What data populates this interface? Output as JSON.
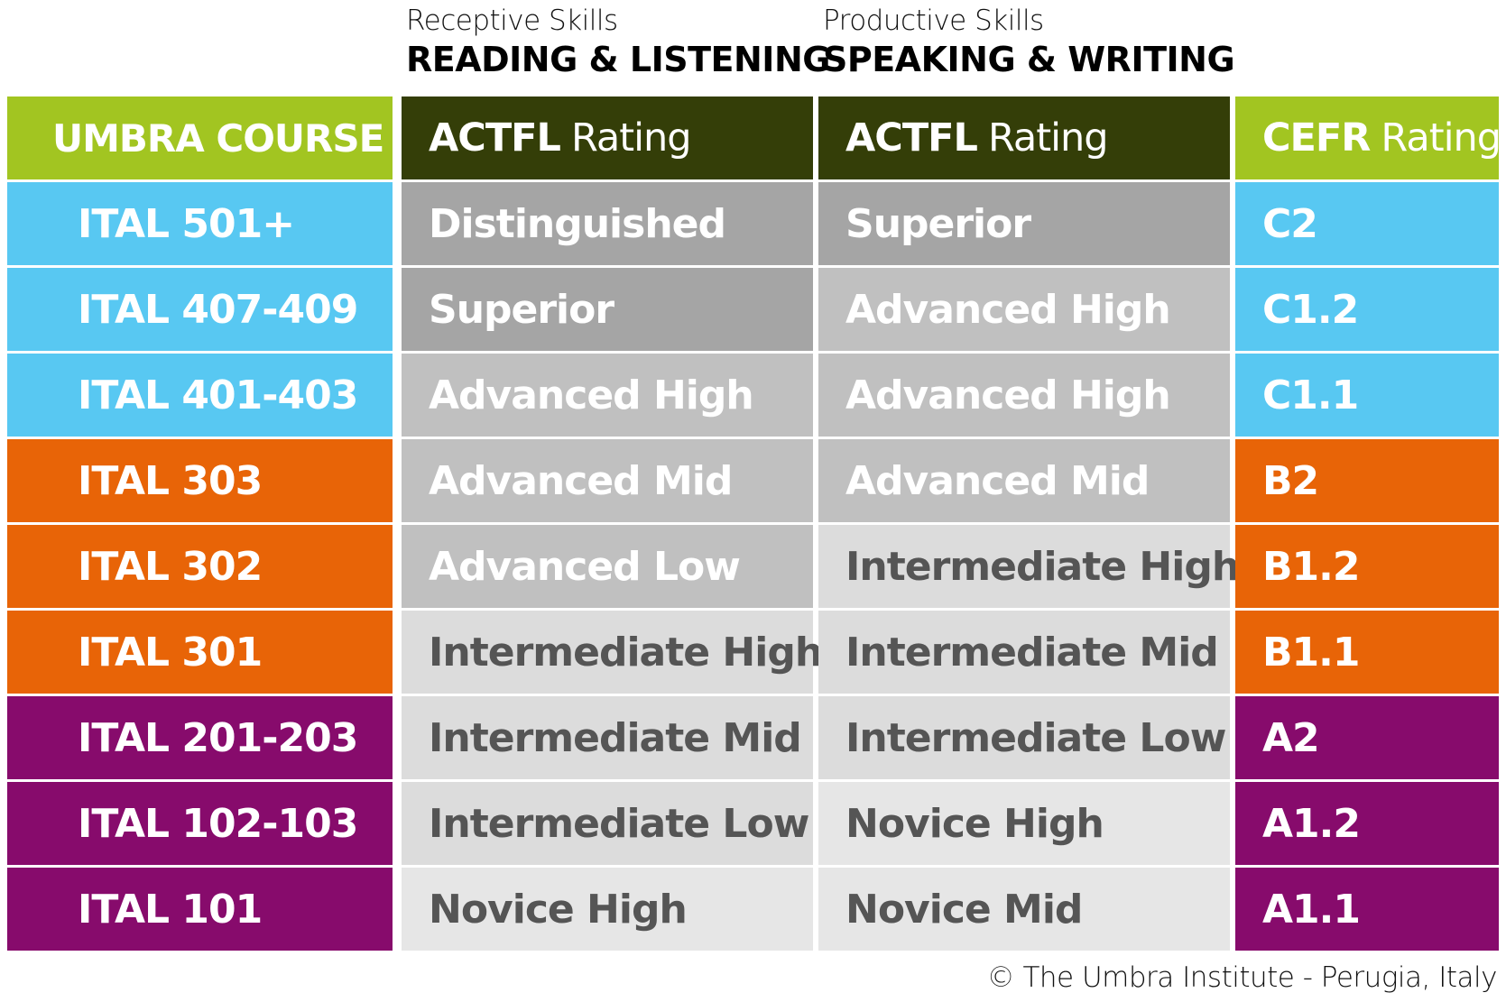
{
  "headings": {
    "receptive_sub": "Receptive Skills",
    "receptive_main": "READING & LISTENING",
    "productive_sub": "Productive Skills",
    "productive_main": "SPEAKING & WRITING"
  },
  "table": {
    "course_header": "UMBRA COURSE",
    "rl_header_bold": "ACTFL",
    "rl_header_light": "Rating",
    "sw_header_bold": "ACTFL",
    "sw_header_light": "Rating",
    "cefr_header_bold": "CEFR",
    "cefr_header_light": "Rating",
    "rows": [
      {
        "course": "ITAL 501+",
        "reading_listening": "Distinguished",
        "speaking_writing": "Superior",
        "cefr": "C2"
      },
      {
        "course": "ITAL 407-409",
        "reading_listening": "Superior",
        "speaking_writing": "Advanced High",
        "cefr": "C1.2"
      },
      {
        "course": "ITAL 401-403",
        "reading_listening": "Advanced High",
        "speaking_writing": "Advanced High",
        "cefr": "C1.1"
      },
      {
        "course": "ITAL 303",
        "reading_listening": "Advanced Mid",
        "speaking_writing": "Advanced Mid",
        "cefr": "B2"
      },
      {
        "course": "ITAL 302",
        "reading_listening": "Advanced Low",
        "speaking_writing": "Intermediate High",
        "cefr": "B1.2"
      },
      {
        "course": "ITAL 301",
        "reading_listening": "Intermediate High",
        "speaking_writing": "Intermediate Mid",
        "cefr": "B1.1"
      },
      {
        "course": "ITAL 201-203",
        "reading_listening": "Intermediate Mid",
        "speaking_writing": "Intermediate Low",
        "cefr": "A2"
      },
      {
        "course": "ITAL 102-103",
        "reading_listening": "Intermediate Low",
        "speaking_writing": "Novice High",
        "cefr": "A1.2"
      },
      {
        "course": "ITAL 101",
        "reading_listening": "Novice High",
        "speaking_writing": "Novice Mid",
        "cefr": "A1.1"
      }
    ]
  },
  "colors": {
    "header_green": "#a2c521",
    "header_dark": "#343e08",
    "level_c": "#58c8f2",
    "level_b": "#e86407",
    "level_a": "#870b6c",
    "grey_dark": "#a5a5a5",
    "grey_mid": "#c0c0c0",
    "grey_light": "#dcdcdc",
    "grey_lightest": "#e6e6e6",
    "text_white": "#ffffff",
    "text_grey": "#555555"
  },
  "footer": "© The Umbra Institute - Perugia, Italy"
}
